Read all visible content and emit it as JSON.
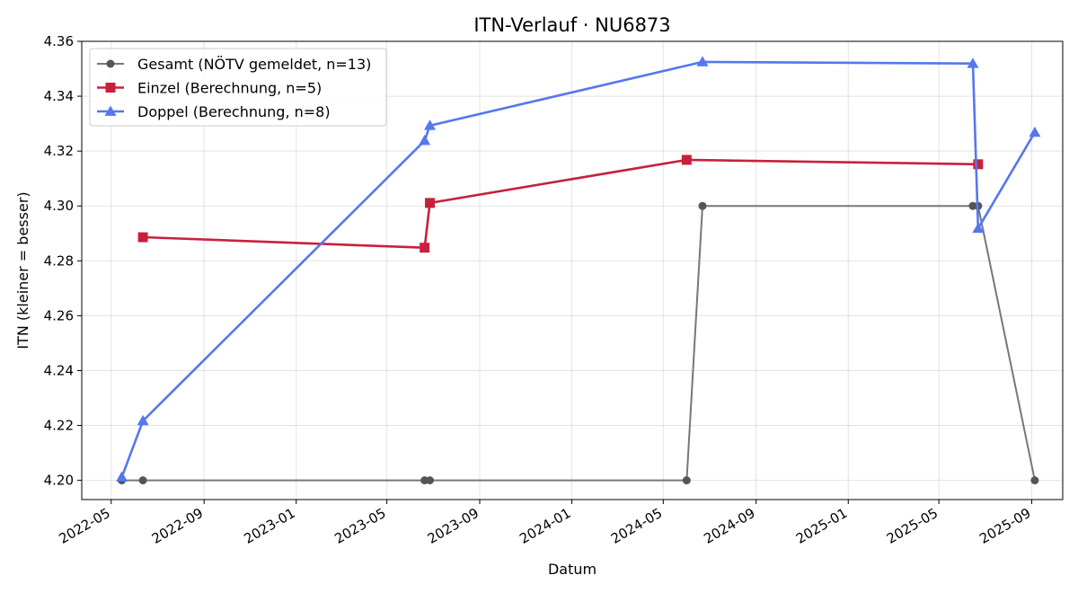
{
  "chart_data": {
    "type": "line",
    "title": "ITN-Verlauf · NU6873",
    "xlabel": "Datum",
    "ylabel": "ITN  (kleiner = besser)",
    "ylim": [
      4.193,
      4.36
    ],
    "xlim": [
      "2022-03-23",
      "2025-10-12"
    ],
    "grid": true,
    "legend_position": "top-left",
    "x_tick_labels": [
      "2022-05",
      "2022-09",
      "2023-01",
      "2023-05",
      "2023-09",
      "2024-01",
      "2024-05",
      "2024-09",
      "2025-01",
      "2025-05",
      "2025-09"
    ],
    "y_tick_labels": [
      "4.20",
      "4.22",
      "4.24",
      "4.26",
      "4.28",
      "4.30",
      "4.32",
      "4.34",
      "4.36"
    ],
    "series": [
      {
        "name": "Gesamt (NÖTV gemeldet, n=13)",
        "color": "#777777",
        "marker_color": "#555555",
        "marker": "circle",
        "points": [
          {
            "x": "2022-05-15",
            "y": 4.2
          },
          {
            "x": "2022-06-12",
            "y": 4.2
          },
          {
            "x": "2023-06-20",
            "y": 4.2
          },
          {
            "x": "2023-06-27",
            "y": 4.2
          },
          {
            "x": "2024-06-01",
            "y": 4.2
          },
          {
            "x": "2024-06-22",
            "y": 4.3
          },
          {
            "x": "2025-06-15",
            "y": 4.3
          },
          {
            "x": "2025-06-22",
            "y": 4.3
          },
          {
            "x": "2025-09-05",
            "y": 4.2
          }
        ]
      },
      {
        "name": "Einzel (Berechnung, n=5)",
        "color": "#c8203c",
        "marker": "square",
        "points": [
          {
            "x": "2022-06-12",
            "y": 4.2886
          },
          {
            "x": "2023-06-20",
            "y": 4.2848
          },
          {
            "x": "2023-06-27",
            "y": 4.3011
          },
          {
            "x": "2024-06-01",
            "y": 4.3168
          },
          {
            "x": "2025-06-22",
            "y": 4.3152
          }
        ]
      },
      {
        "name": "Doppel (Berechnung, n=8)",
        "color": "#5577ee",
        "marker": "triangle",
        "points": [
          {
            "x": "2022-05-15",
            "y": 4.2012
          },
          {
            "x": "2022-06-12",
            "y": 4.2217
          },
          {
            "x": "2023-06-20",
            "y": 4.3238
          },
          {
            "x": "2023-06-27",
            "y": 4.3293
          },
          {
            "x": "2024-06-22",
            "y": 4.3525
          },
          {
            "x": "2025-06-15",
            "y": 4.3519
          },
          {
            "x": "2025-06-22",
            "y": 4.2918
          },
          {
            "x": "2025-09-05",
            "y": 4.3268
          }
        ]
      }
    ]
  }
}
